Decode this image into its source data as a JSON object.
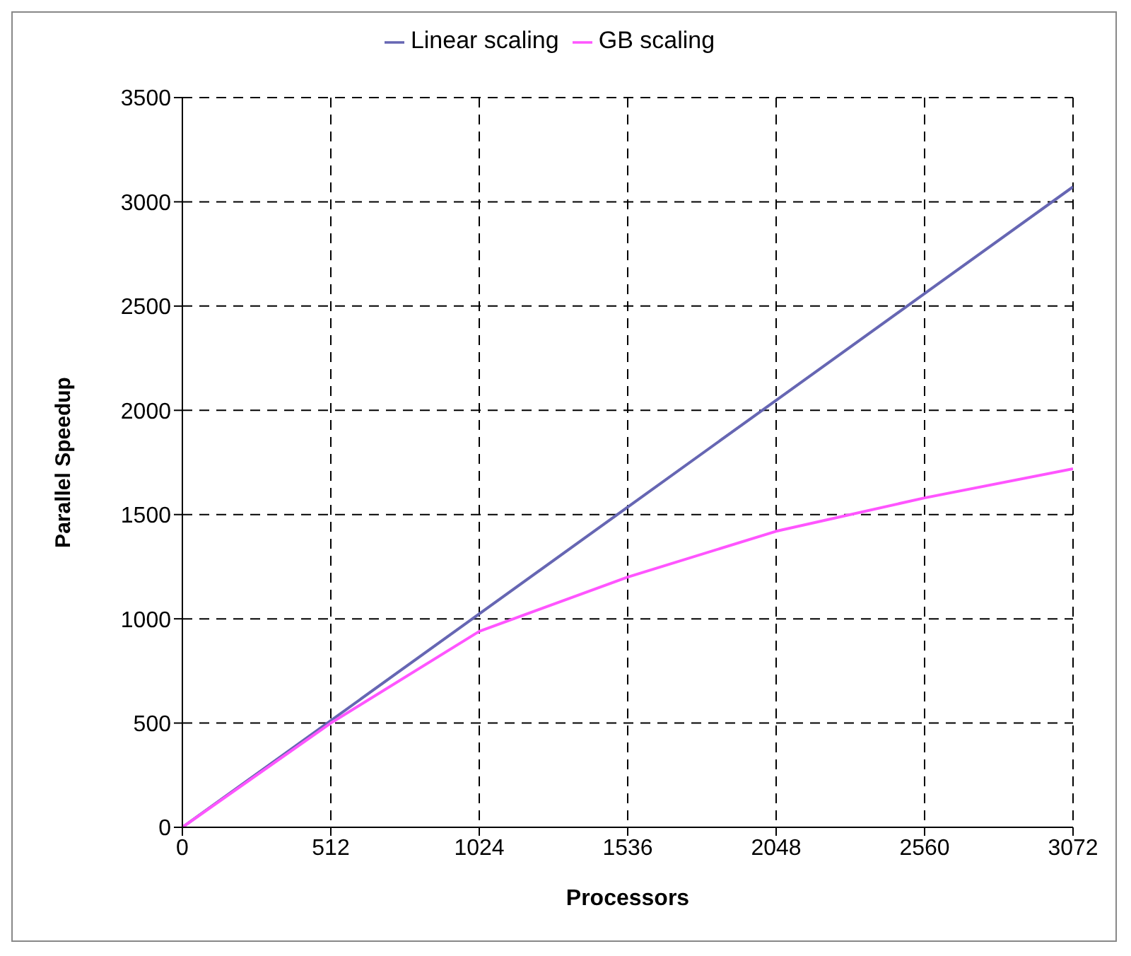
{
  "chart_data": {
    "type": "line",
    "xlabel": "Processors",
    "ylabel": "Parallel Speedup",
    "x": [
      0,
      512,
      1024,
      1536,
      2048,
      2560,
      3072
    ],
    "series": [
      {
        "name": "Linear scaling",
        "color": "#6666b3",
        "values": [
          0,
          512,
          1024,
          1536,
          2048,
          2560,
          3072
        ]
      },
      {
        "name": "GB scaling",
        "color": "#ff55ff",
        "values": [
          0,
          500,
          940,
          1200,
          1420,
          1580,
          1720
        ]
      }
    ],
    "xlim": [
      0,
      3072
    ],
    "xticks": [
      0,
      512,
      1024,
      1536,
      2048,
      2560,
      3072
    ],
    "ylim": [
      0,
      3500
    ],
    "yticks": [
      0,
      500,
      1000,
      1500,
      2000,
      2500,
      3000,
      3500
    ],
    "grid": true,
    "legend": "top",
    "marker": "none",
    "line_style": "solid"
  }
}
